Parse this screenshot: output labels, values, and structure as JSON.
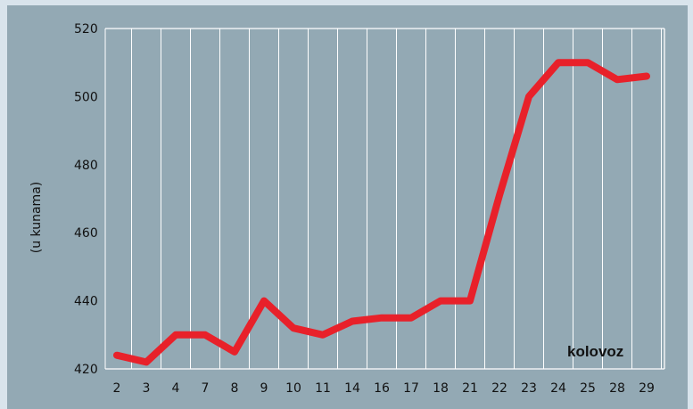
{
  "chart_data": {
    "type": "line",
    "title": "",
    "xlabel": "",
    "ylabel": "(u kunama)",
    "annotation": "kolovoz",
    "categories": [
      "2",
      "3",
      "4",
      "7",
      "8",
      "9",
      "10",
      "11",
      "14",
      "16",
      "17",
      "18",
      "21",
      "22",
      "23",
      "24",
      "25",
      "28",
      "29"
    ],
    "series": [
      {
        "values": [
          424,
          422,
          430,
          430,
          425,
          440,
          432,
          430,
          434,
          435,
          435,
          440,
          440,
          471,
          500,
          510,
          510,
          505,
          506
        ]
      }
    ],
    "ylim": [
      420,
      520
    ],
    "yticks": [
      420,
      440,
      460,
      480,
      500,
      520
    ],
    "grid": "vertical",
    "line_color": "#e8212a"
  }
}
